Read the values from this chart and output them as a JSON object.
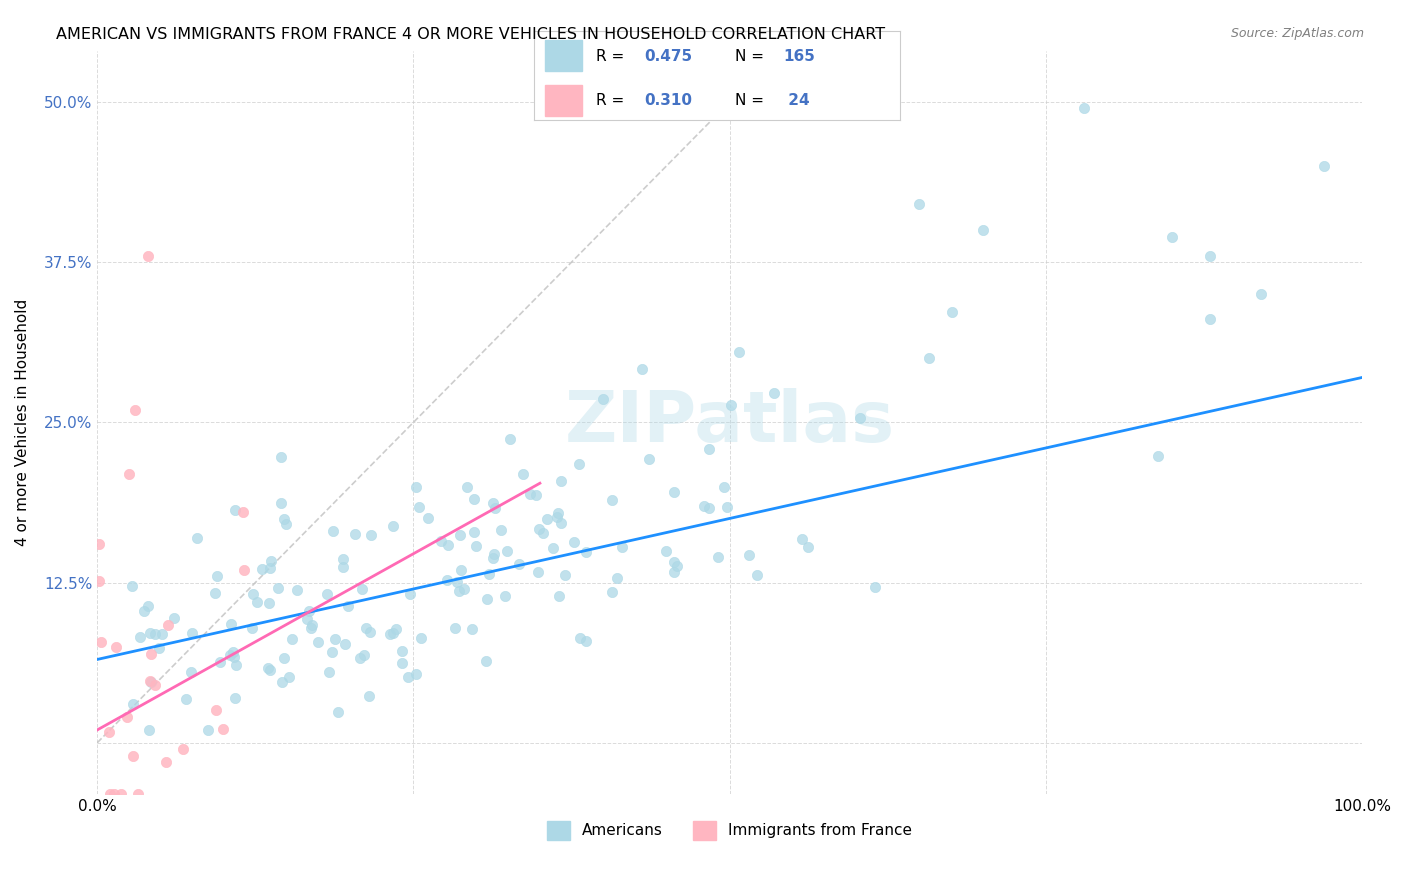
{
  "title": "AMERICAN VS IMMIGRANTS FROM FRANCE 4 OR MORE VEHICLES IN HOUSEHOLD CORRELATION CHART",
  "source": "Source: ZipAtlas.com",
  "xlabel": "",
  "ylabel": "4 or more Vehicles in Household",
  "xlim": [
    0,
    1.0
  ],
  "ylim": [
    -0.04,
    0.54
  ],
  "x_ticks": [
    0.0,
    0.25,
    0.5,
    0.75,
    1.0
  ],
  "x_tick_labels": [
    "0.0%",
    "",
    "",
    "",
    "100.0%"
  ],
  "y_ticks": [
    0.0,
    0.125,
    0.25,
    0.375,
    0.5
  ],
  "y_tick_labels": [
    "",
    "12.5%",
    "25.0%",
    "37.5%",
    "50.0%"
  ],
  "legend_r_american": "R = 0.475",
  "legend_n_american": "N = 165",
  "legend_r_france": "R = 0.310",
  "legend_n_france": "N =  24",
  "american_color": "#ADD8E6",
  "france_color": "#FFB6C1",
  "american_line_color": "#1E90FF",
  "france_line_color": "#FF69B4",
  "diagonal_color": "#C0C0C0",
  "watermark": "ZIPatlas",
  "background_color": "#FFFFFF",
  "american_R": 0.475,
  "france_R": 0.31,
  "american_N": 165,
  "france_N": 24,
  "american_slope": 0.22,
  "american_intercept": 0.065,
  "france_slope": 0.55,
  "france_intercept": 0.01
}
